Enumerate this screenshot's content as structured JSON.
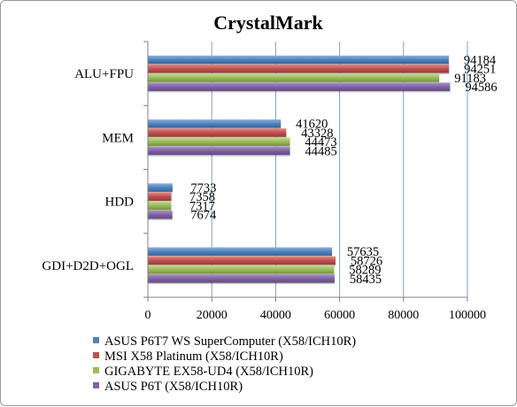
{
  "chart_data": {
    "type": "bar",
    "orientation": "horizontal",
    "title": "CrystalMark",
    "categories": [
      "ALU+FPU",
      "MEM",
      "HDD",
      "GDI+D2D+OGL"
    ],
    "series": [
      {
        "name": "ASUS P6T7 WS SuperComputer (X58/ICH10R)",
        "color": "#4f81bd",
        "values": [
          94184,
          41620,
          7733,
          57635
        ]
      },
      {
        "name": "MSI X58 Platinum (X58/ICH10R)",
        "color": "#c0504d",
        "values": [
          94251,
          43328,
          7358,
          58726
        ]
      },
      {
        "name": "GIGABYTE EX58-UD4 (X58/ICH10R)",
        "color": "#9bbb59",
        "values": [
          91183,
          44473,
          7317,
          58289
        ]
      },
      {
        "name": "ASUS P6T (X58/ICH10R)",
        "color": "#8064a2",
        "values": [
          94586,
          44485,
          7674,
          58435
        ]
      }
    ],
    "xlim": [
      0,
      100000
    ],
    "xticks": [
      "0",
      "20000",
      "40000",
      "60000",
      "80000",
      "100000"
    ],
    "grid": "vertical",
    "legend_position": "bottom"
  }
}
